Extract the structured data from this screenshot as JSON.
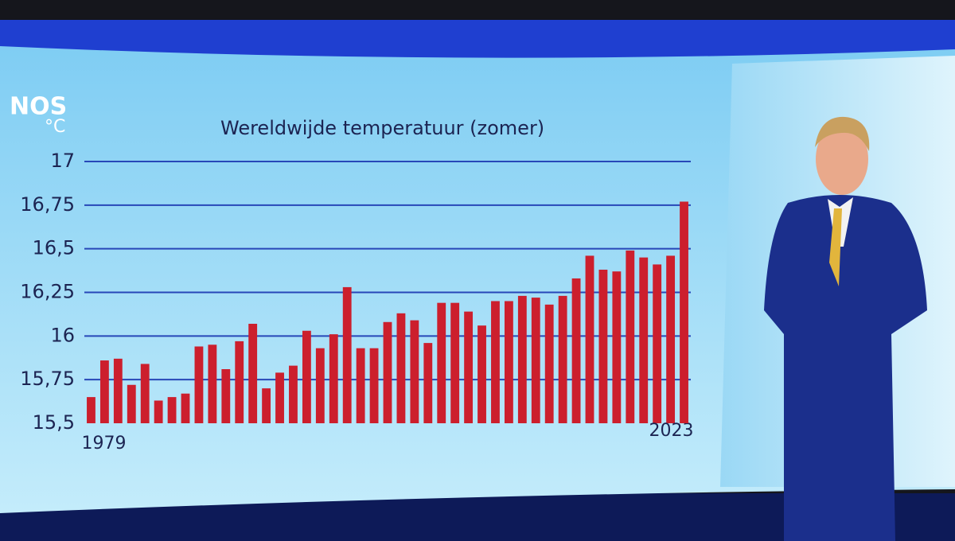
{
  "logo": {
    "name": "NOS",
    "unit": "°C"
  },
  "chart_data": {
    "type": "bar",
    "title": "Wereldwijde temperatuur (zomer)",
    "categories": [
      "1979",
      null,
      null,
      null,
      null,
      null,
      null,
      null,
      null,
      null,
      null,
      null,
      null,
      null,
      null,
      null,
      null,
      null,
      null,
      null,
      null,
      null,
      null,
      null,
      null,
      null,
      null,
      null,
      null,
      null,
      null,
      null,
      null,
      null,
      null,
      null,
      null,
      null,
      null,
      null,
      null,
      null,
      null,
      null,
      "2023"
    ],
    "values": [
      15.65,
      15.86,
      15.87,
      15.72,
      15.84,
      15.63,
      15.65,
      15.67,
      15.94,
      15.95,
      15.81,
      15.97,
      16.07,
      15.7,
      15.79,
      15.83,
      16.03,
      15.93,
      16.01,
      16.28,
      15.93,
      15.93,
      16.08,
      16.13,
      16.09,
      15.96,
      16.19,
      16.19,
      16.14,
      16.06,
      16.2,
      16.2,
      16.23,
      16.22,
      16.18,
      16.23,
      16.33,
      16.46,
      16.38,
      16.37,
      16.49,
      16.45,
      16.41,
      16.46,
      16.77
    ],
    "color": "#cc1f2d",
    "ylim": [
      15.5,
      17
    ],
    "yticks": [
      {
        "value": 15.5,
        "label": "15,5"
      },
      {
        "value": 15.75,
        "label": "15,75"
      },
      16,
      {
        "value": 16.25,
        "label": "16,25"
      },
      {
        "value": 16.5,
        "label": "16,5"
      },
      {
        "value": 16.75,
        "label": "16,75"
      },
      17
    ],
    "grid": true
  }
}
